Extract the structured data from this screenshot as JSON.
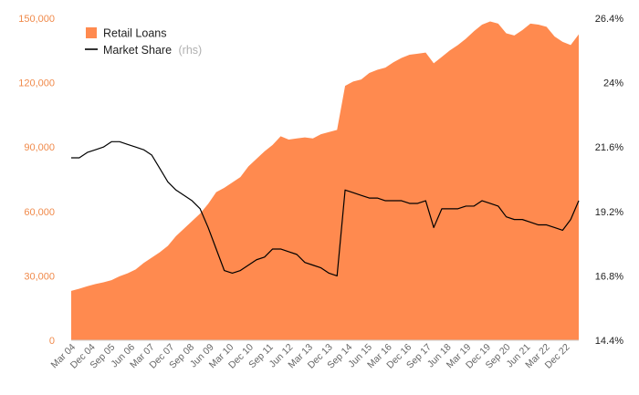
{
  "chart_data": {
    "type": "area",
    "title": "",
    "legend": [
      {
        "label": "Retail Loans",
        "note": "",
        "color": "#ff8a4f",
        "marker": "square"
      },
      {
        "label": "Market Share",
        "note": "(rhs)",
        "color": "#000000",
        "marker": "line"
      }
    ],
    "legend_position": "top-left",
    "grid": false,
    "left_axis": {
      "ylim": [
        0,
        150000
      ],
      "ticks": [
        0,
        30000,
        60000,
        90000,
        120000,
        150000
      ],
      "tick_labels": [
        "0",
        "30,000",
        "60,000",
        "90,000",
        "120,000",
        "150,000"
      ],
      "color": "#f08a4b"
    },
    "right_axis": {
      "ylim": [
        14.4,
        26.4
      ],
      "ticks": [
        14.4,
        16.8,
        19.2,
        21.6,
        24.0,
        26.4
      ],
      "tick_labels": [
        "14.4%",
        "16.8%",
        "19.2%",
        "21.6%",
        "24%",
        "26.4%"
      ]
    },
    "x_axis": {
      "start": "2004-03",
      "end": "2023-06",
      "tick_labels": [
        "Mar 04",
        "Dec 04",
        "Sep 05",
        "Jun 06",
        "Mar 07",
        "Dec 07",
        "Sep 08",
        "Jun 09",
        "Mar 10",
        "Dec 10",
        "Sep 11",
        "Jun 12",
        "Mar 13",
        "Dec 13",
        "Sep 14",
        "Jun 15",
        "Mar 16",
        "Dec 16",
        "Sep 17",
        "Jun 18",
        "Mar 19",
        "Dec 19",
        "Sep 20",
        "Jun 21",
        "Mar 22",
        "Dec 22"
      ]
    },
    "series": [
      {
        "name": "Retail Loans",
        "axis": "left",
        "type": "area",
        "color": "#ff8a4f",
        "values": [
          23000,
          24000,
          25200,
          26200,
          27000,
          28000,
          29800,
          31200,
          33000,
          36000,
          38500,
          41000,
          44000,
          48500,
          52000,
          55500,
          59000,
          63500,
          69000,
          71000,
          73500,
          76000,
          81000,
          84500,
          88000,
          91000,
          95000,
          93500,
          94000,
          94500,
          94000,
          96000,
          97000,
          98000,
          118500,
          120500,
          121500,
          124500,
          126000,
          127000,
          129500,
          131500,
          133000,
          133500,
          134000,
          129000,
          132000,
          135000,
          137500,
          140500,
          144000,
          147000,
          148500,
          147500,
          143000,
          142000,
          144500,
          147500,
          147000,
          146000,
          141500,
          139000,
          137500,
          142500
        ]
      },
      {
        "name": "Market Share",
        "axis": "right",
        "type": "line",
        "color": "#000000",
        "values": [
          21.2,
          21.2,
          21.4,
          21.5,
          21.6,
          21.8,
          21.8,
          21.7,
          21.6,
          21.5,
          21.3,
          20.8,
          20.3,
          20.0,
          19.8,
          19.6,
          19.3,
          18.6,
          17.8,
          17.0,
          16.9,
          17.0,
          17.2,
          17.4,
          17.5,
          17.8,
          17.8,
          17.7,
          17.6,
          17.3,
          17.2,
          17.1,
          16.9,
          16.8,
          20.0,
          19.9,
          19.8,
          19.7,
          19.7,
          19.6,
          19.6,
          19.6,
          19.5,
          19.5,
          19.6,
          18.6,
          19.3,
          19.3,
          19.3,
          19.4,
          19.4,
          19.6,
          19.5,
          19.4,
          19.0,
          18.9,
          18.9,
          18.8,
          18.7,
          18.7,
          18.6,
          18.5,
          18.9,
          19.6
        ]
      }
    ]
  }
}
